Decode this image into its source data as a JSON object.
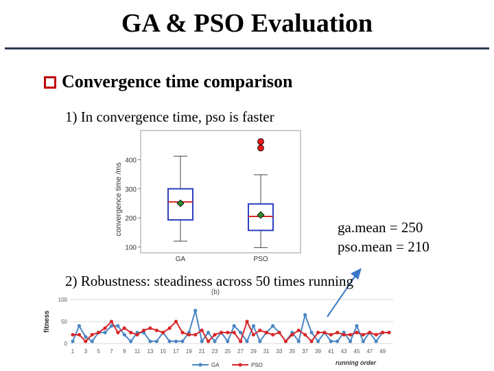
{
  "slide": {
    "title": "GA & PSO Evaluation",
    "bullet_heading": "Convergence time comparison",
    "point1": "1) In convergence time, pso is faster",
    "point2": "2) Robustness: steadiness across 50 times running",
    "ga_mean": "ga.mean = 250",
    "pso_mean": "pso.mean = 210",
    "colors": {
      "rule": "#2c3a4f",
      "bullet": "#c00000",
      "arrow": "#3a78c8"
    }
  },
  "chart_data": [
    {
      "type": "box",
      "ylabel": "convergence time /ms",
      "yticks": [
        100,
        200,
        300,
        400
      ],
      "ylim": [
        80,
        500
      ],
      "categories": [
        "GA",
        "PSO"
      ],
      "boxes": [
        {
          "name": "GA",
          "whisker_low": 120,
          "q1": 193,
          "median": 255,
          "q3": 300,
          "whisker_high": 412,
          "mean": 250,
          "outliers": []
        },
        {
          "name": "PSO",
          "whisker_low": 98,
          "q1": 157,
          "median": 205,
          "q3": 248,
          "whisker_high": 348,
          "mean": 210,
          "outliers": [
            440,
            462
          ]
        }
      ],
      "colors": {
        "box": "#2b3fbf",
        "median": "#d62728",
        "mean": "#2e8b2e",
        "outlier": "#e41a1c"
      }
    },
    {
      "type": "line",
      "title": "(b)",
      "xlabel": "running order",
      "ylabel": "fitness",
      "yticks": [
        0,
        50,
        100
      ],
      "ylim": [
        0,
        100
      ],
      "x_ticks": [
        1,
        3,
        5,
        7,
        9,
        11,
        13,
        15,
        17,
        19,
        21,
        23,
        25,
        27,
        29,
        31,
        33,
        35,
        37,
        39,
        41,
        43,
        45,
        47,
        49
      ],
      "x": [
        1,
        2,
        3,
        4,
        5,
        6,
        7,
        8,
        9,
        10,
        11,
        12,
        13,
        14,
        15,
        16,
        17,
        18,
        19,
        20,
        21,
        22,
        23,
        24,
        25,
        26,
        27,
        28,
        29,
        30,
        31,
        32,
        33,
        34,
        35,
        36,
        37,
        38,
        39,
        40,
        41,
        42,
        43,
        44,
        45,
        46,
        47,
        48,
        49,
        50
      ],
      "series": [
        {
          "name": "GA",
          "color": "#4a86c5",
          "values": [
            5,
            40,
            15,
            5,
            25,
            25,
            40,
            40,
            20,
            5,
            25,
            25,
            5,
            5,
            25,
            5,
            5,
            5,
            25,
            75,
            5,
            25,
            5,
            25,
            5,
            40,
            25,
            5,
            40,
            5,
            25,
            40,
            25,
            5,
            25,
            5,
            65,
            25,
            5,
            25,
            5,
            5,
            25,
            5,
            40,
            5,
            25,
            5,
            25,
            25
          ]
        },
        {
          "name": "PSO",
          "color": "#d62728",
          "values": [
            20,
            20,
            5,
            20,
            25,
            35,
            50,
            25,
            35,
            25,
            20,
            30,
            35,
            30,
            25,
            35,
            50,
            25,
            20,
            20,
            30,
            5,
            20,
            25,
            25,
            25,
            5,
            50,
            20,
            30,
            25,
            20,
            25,
            5,
            20,
            30,
            20,
            5,
            25,
            25,
            20,
            25,
            20,
            20,
            25,
            20,
            25,
            20,
            25,
            25
          ]
        }
      ]
    }
  ]
}
